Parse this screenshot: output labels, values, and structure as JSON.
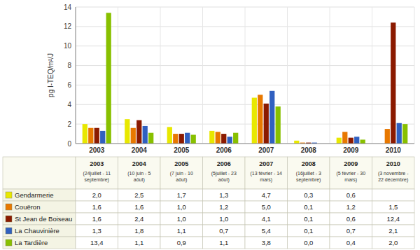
{
  "chart_data": {
    "type": "bar",
    "categories": [
      "2003",
      "2004",
      "2005",
      "2006",
      "2007",
      "2008",
      "2009",
      "2010"
    ],
    "category_notes": [
      "(24juillet - 11\nseptembre)",
      "(10 juin - 5\naôut)",
      "(7 juin - 10\naôut)",
      "(5juillet - 23\naôut)",
      "(13 février - 14\nmars)",
      "(16juillet - 3\nseptembre)",
      "(5 février - 30\nmars)",
      "(3 novembre -\n22 décembre)"
    ],
    "y_label": "pg I-TEQ/m²/J",
    "series": [
      {
        "name": "Gendarmerie",
        "color": "#e8e800",
        "values": [
          2.0,
          2.5,
          1.7,
          1.3,
          4.7,
          0.3,
          0.6,
          0.0
        ],
        "value_labels": [
          "2,0",
          "2,5",
          "1,7",
          "1,3",
          "4,7",
          "0,3",
          "0,6",
          null
        ]
      },
      {
        "name": "Couëron",
        "color": "#e87800",
        "values": [
          1.6,
          1.6,
          1.0,
          1.2,
          5.0,
          0.1,
          1.2,
          1.5
        ],
        "value_labels": [
          "1,6",
          "1,6",
          "1,0",
          "1,2",
          "5,0",
          "0,1",
          "1,2",
          "1,5"
        ]
      },
      {
        "name": "St Jean de Boiseau",
        "color": "#8b1a00",
        "values": [
          1.6,
          2.4,
          1.0,
          1.0,
          4.1,
          0.1,
          0.6,
          12.4
        ],
        "value_labels": [
          "1,6",
          "2,4",
          "1,0",
          "1,0",
          "4,1",
          "0,1",
          "0,6",
          "12,4"
        ]
      },
      {
        "name": "La Chauvinière",
        "color": "#3060c0",
        "values": [
          1.3,
          1.8,
          1.1,
          0.7,
          5.4,
          0.1,
          0.7,
          2.1
        ],
        "value_labels": [
          "1,3",
          "1,8",
          "1,1",
          "0,7",
          "5,4",
          "0,1",
          "0,7",
          "2,1"
        ]
      },
      {
        "name": "La Tardière",
        "color": "#88c000",
        "values": [
          13.4,
          1.1,
          0.9,
          1.1,
          3.8,
          0.0,
          0.4,
          2.0
        ],
        "value_labels": [
          "13,4",
          "1,1",
          "0,9",
          "1,1",
          "3,8",
          "0,0",
          "0,4",
          "2,0"
        ]
      }
    ],
    "ylim": [
      0,
      14
    ],
    "yticks": [
      0,
      2,
      4,
      6,
      8,
      10,
      12,
      14
    ],
    "grid": true
  }
}
